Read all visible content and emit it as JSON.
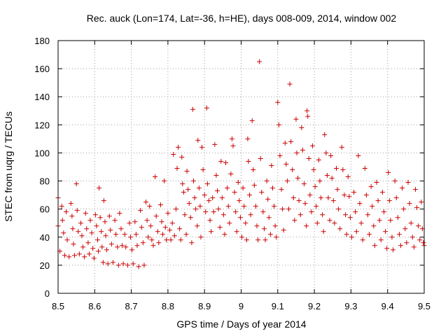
{
  "chart_data": {
    "type": "scatter",
    "title": "Rec. auck (Lon=174, Lat=-36, h=HE), days 008-009, 2014, window 002",
    "xlabel": "GPS time / Days of year 2014",
    "ylabel": "STEC from uqrg / TECUs",
    "xlim": [
      8.5,
      9.5
    ],
    "ylim": [
      0,
      180
    ],
    "x_ticks": [
      8.5,
      8.6,
      8.7,
      8.8,
      8.9,
      9.0,
      9.1,
      9.2,
      9.3,
      9.4,
      9.5
    ],
    "x_tick_labels": [
      "8.5",
      "8.6",
      "8.7",
      "8.8",
      "8.9",
      "9",
      "9.1",
      "9.2",
      "9.3",
      "9.4",
      "9.5"
    ],
    "y_ticks": [
      0,
      20,
      40,
      60,
      80,
      100,
      120,
      140,
      160,
      180
    ],
    "y_tick_labels": [
      "0",
      "20",
      "40",
      "60",
      "80",
      "100",
      "120",
      "140",
      "160",
      "180"
    ],
    "grid": true,
    "marker": "+",
    "color": "#cc0000",
    "series": [
      {
        "name": "STEC",
        "points": [
          [
            8.5,
            68
          ],
          [
            8.5,
            48
          ],
          [
            8.505,
            30
          ],
          [
            8.51,
            62
          ],
          [
            8.512,
            52
          ],
          [
            8.515,
            43
          ],
          [
            8.518,
            27
          ],
          [
            8.522,
            58
          ],
          [
            8.525,
            38
          ],
          [
            8.53,
            26
          ],
          [
            8.535,
            64
          ],
          [
            8.538,
            55
          ],
          [
            8.54,
            46
          ],
          [
            8.542,
            35
          ],
          [
            8.545,
            27
          ],
          [
            8.55,
            78
          ],
          [
            8.552,
            59
          ],
          [
            8.555,
            44
          ],
          [
            8.558,
            28
          ],
          [
            8.562,
            50
          ],
          [
            8.565,
            41
          ],
          [
            8.568,
            33
          ],
          [
            8.572,
            26
          ],
          [
            8.575,
            57
          ],
          [
            8.578,
            46
          ],
          [
            8.582,
            36
          ],
          [
            8.585,
            28
          ],
          [
            8.588,
            52
          ],
          [
            8.592,
            43
          ],
          [
            8.595,
            32
          ],
          [
            8.598,
            25
          ],
          [
            8.602,
            56
          ],
          [
            8.605,
            48
          ],
          [
            8.608,
            38
          ],
          [
            8.61,
            30
          ],
          [
            8.612,
            75
          ],
          [
            8.615,
            54
          ],
          [
            8.618,
            44
          ],
          [
            8.62,
            33
          ],
          [
            8.623,
            22
          ],
          [
            8.625,
            66
          ],
          [
            8.628,
            51
          ],
          [
            8.63,
            41
          ],
          [
            8.633,
            31
          ],
          [
            8.636,
            21
          ],
          [
            8.64,
            55
          ],
          [
            8.643,
            45
          ],
          [
            8.646,
            35
          ],
          [
            8.65,
            22
          ],
          [
            8.655,
            52
          ],
          [
            8.658,
            42
          ],
          [
            8.662,
            33
          ],
          [
            8.665,
            20
          ],
          [
            8.668,
            57
          ],
          [
            8.672,
            46
          ],
          [
            8.675,
            34
          ],
          [
            8.678,
            21
          ],
          [
            8.682,
            42
          ],
          [
            8.685,
            33
          ],
          [
            8.69,
            20
          ],
          [
            8.695,
            50
          ],
          [
            8.698,
            40
          ],
          [
            8.702,
            31
          ],
          [
            8.705,
            21
          ],
          [
            8.71,
            51
          ],
          [
            8.713,
            42
          ],
          [
            8.716,
            34
          ],
          [
            8.72,
            19
          ],
          [
            8.725,
            59
          ],
          [
            8.728,
            47
          ],
          [
            8.732,
            36
          ],
          [
            8.735,
            20
          ],
          [
            8.74,
            65
          ],
          [
            8.743,
            52
          ],
          [
            8.746,
            40
          ],
          [
            8.75,
            62
          ],
          [
            8.753,
            48
          ],
          [
            8.756,
            38
          ],
          [
            8.76,
            34
          ],
          [
            8.765,
            83
          ],
          [
            8.768,
            55
          ],
          [
            8.772,
            44
          ],
          [
            8.775,
            36
          ],
          [
            8.78,
            63
          ],
          [
            8.783,
            51
          ],
          [
            8.786,
            42
          ],
          [
            8.79,
            80
          ],
          [
            8.793,
            47
          ],
          [
            8.796,
            38
          ],
          [
            8.8,
            57
          ],
          [
            8.805,
            45
          ],
          [
            8.808,
            38
          ],
          [
            8.812,
            50
          ],
          [
            8.815,
            99
          ],
          [
            8.818,
            41
          ],
          [
            8.822,
            60
          ],
          [
            8.825,
            89
          ],
          [
            8.828,
            104
          ],
          [
            8.832,
            46
          ],
          [
            8.835,
            38
          ],
          [
            8.838,
            97
          ],
          [
            8.84,
            78
          ],
          [
            8.843,
            72
          ],
          [
            8.846,
            56
          ],
          [
            8.85,
            42
          ],
          [
            8.852,
            87
          ],
          [
            8.855,
            74
          ],
          [
            8.858,
            64
          ],
          [
            8.862,
            54
          ],
          [
            8.865,
            36
          ],
          [
            8.868,
            131
          ],
          [
            8.87,
            80
          ],
          [
            8.873,
            68
          ],
          [
            8.876,
            60
          ],
          [
            8.88,
            48
          ],
          [
            8.882,
            109
          ],
          [
            8.885,
            75
          ],
          [
            8.888,
            62
          ],
          [
            8.89,
            40
          ],
          [
            8.893,
            104
          ],
          [
            8.896,
            88
          ],
          [
            8.9,
            70
          ],
          [
            8.903,
            58
          ],
          [
            8.906,
            132
          ],
          [
            8.908,
            78
          ],
          [
            8.912,
            66
          ],
          [
            8.915,
            52
          ],
          [
            8.918,
            44
          ],
          [
            8.922,
            68
          ],
          [
            8.925,
            58
          ],
          [
            8.928,
            106
          ],
          [
            8.932,
            84
          ],
          [
            8.935,
            73
          ],
          [
            8.938,
            60
          ],
          [
            8.942,
            47
          ],
          [
            8.945,
            94
          ],
          [
            8.948,
            68
          ],
          [
            8.952,
            56
          ],
          [
            8.955,
            42
          ],
          [
            8.958,
            93
          ],
          [
            8.962,
            75
          ],
          [
            8.965,
            62
          ],
          [
            8.968,
            50
          ],
          [
            8.972,
            85
          ],
          [
            8.975,
            110
          ],
          [
            8.978,
            105
          ],
          [
            8.982,
            72
          ],
          [
            8.985,
            58
          ],
          [
            8.988,
            44
          ],
          [
            8.992,
            79
          ],
          [
            8.995,
            66
          ],
          [
            8.998,
            54
          ],
          [
            9.002,
            40
          ],
          [
            9.005,
            75
          ],
          [
            9.008,
            62
          ],
          [
            9.012,
            50
          ],
          [
            9.015,
            38
          ],
          [
            9.018,
            110
          ],
          [
            9.02,
            94
          ],
          [
            9.023,
            70
          ],
          [
            9.026,
            56
          ],
          [
            9.03,
            123
          ],
          [
            9.033,
            88
          ],
          [
            9.036,
            77
          ],
          [
            9.04,
            62
          ],
          [
            9.043,
            48
          ],
          [
            9.046,
            38
          ],
          [
            9.05,
            165
          ],
          [
            9.053,
            96
          ],
          [
            9.056,
            72
          ],
          [
            9.06,
            58
          ],
          [
            9.063,
            46
          ],
          [
            9.066,
            38
          ],
          [
            9.07,
            80
          ],
          [
            9.073,
            67
          ],
          [
            9.076,
            54
          ],
          [
            9.08,
            42
          ],
          [
            9.083,
            91
          ],
          [
            9.086,
            75
          ],
          [
            9.09,
            62
          ],
          [
            9.093,
            48
          ],
          [
            9.096,
            40
          ],
          [
            9.1,
            136
          ],
          [
            9.103,
            120
          ],
          [
            9.106,
            98
          ],
          [
            9.11,
            74
          ],
          [
            9.113,
            60
          ],
          [
            9.116,
            45
          ],
          [
            9.12,
            107
          ],
          [
            9.123,
            92
          ],
          [
            9.126,
            80
          ],
          [
            9.13,
            60
          ],
          [
            9.133,
            149
          ],
          [
            9.136,
            108
          ],
          [
            9.14,
            88
          ],
          [
            9.143,
            68
          ],
          [
            9.146,
            52
          ],
          [
            9.15,
            124
          ],
          [
            9.152,
            100
          ],
          [
            9.155,
            82
          ],
          [
            9.158,
            66
          ],
          [
            9.162,
            56
          ],
          [
            9.165,
            118
          ],
          [
            9.168,
            102
          ],
          [
            9.172,
            78
          ],
          [
            9.175,
            64
          ],
          [
            9.178,
            48
          ],
          [
            9.18,
            130
          ],
          [
            9.182,
            126
          ],
          [
            9.185,
            96
          ],
          [
            9.188,
            70
          ],
          [
            9.192,
            58
          ],
          [
            9.195,
            105
          ],
          [
            9.198,
            88
          ],
          [
            9.202,
            76
          ],
          [
            9.205,
            62
          ],
          [
            9.208,
            50
          ],
          [
            9.212,
            95
          ],
          [
            9.215,
            80
          ],
          [
            9.218,
            68
          ],
          [
            9.222,
            56
          ],
          [
            9.225,
            44
          ],
          [
            9.228,
            113
          ],
          [
            9.232,
            100
          ],
          [
            9.235,
            84
          ],
          [
            9.238,
            68
          ],
          [
            9.242,
            52
          ],
          [
            9.245,
            98
          ],
          [
            9.248,
            82
          ],
          [
            9.252,
            66
          ],
          [
            9.255,
            50
          ],
          [
            9.26,
            89
          ],
          [
            9.263,
            74
          ],
          [
            9.266,
            60
          ],
          [
            9.27,
            46
          ],
          [
            9.275,
            104
          ],
          [
            9.278,
            88
          ],
          [
            9.282,
            70
          ],
          [
            9.285,
            56
          ],
          [
            9.288,
            42
          ],
          [
            9.292,
            83
          ],
          [
            9.295,
            69
          ],
          [
            9.298,
            54
          ],
          [
            9.302,
            40
          ],
          [
            9.308,
            72
          ],
          [
            9.312,
            58
          ],
          [
            9.315,
            44
          ],
          [
            9.32,
            98
          ],
          [
            9.324,
            64
          ],
          [
            9.328,
            50
          ],
          [
            9.332,
            38
          ],
          [
            9.338,
            89
          ],
          [
            9.342,
            70
          ],
          [
            9.346,
            56
          ],
          [
            9.35,
            42
          ],
          [
            9.355,
            76
          ],
          [
            9.358,
            62
          ],
          [
            9.362,
            48
          ],
          [
            9.365,
            34
          ],
          [
            9.37,
            79
          ],
          [
            9.374,
            66
          ],
          [
            9.378,
            52
          ],
          [
            9.382,
            38
          ],
          [
            9.386,
            72
          ],
          [
            9.39,
            58
          ],
          [
            9.394,
            44
          ],
          [
            9.398,
            32
          ],
          [
            9.402,
            86
          ],
          [
            9.405,
            66
          ],
          [
            9.408,
            52
          ],
          [
            9.412,
            40
          ],
          [
            9.415,
            31
          ],
          [
            9.42,
            80
          ],
          [
            9.424,
            68
          ],
          [
            9.428,
            54
          ],
          [
            9.432,
            42
          ],
          [
            9.436,
            34
          ],
          [
            9.44,
            75
          ],
          [
            9.444,
            60
          ],
          [
            9.448,
            46
          ],
          [
            9.452,
            36
          ],
          [
            9.456,
            79
          ],
          [
            9.46,
            64
          ],
          [
            9.464,
            50
          ],
          [
            9.468,
            40
          ],
          [
            9.472,
            33
          ],
          [
            9.476,
            74
          ],
          [
            9.48,
            61
          ],
          [
            9.484,
            48
          ],
          [
            9.488,
            38
          ],
          [
            9.492,
            65
          ],
          [
            9.495,
            46
          ],
          [
            9.498,
            36
          ],
          [
            9.5,
            34
          ]
        ]
      }
    ]
  }
}
